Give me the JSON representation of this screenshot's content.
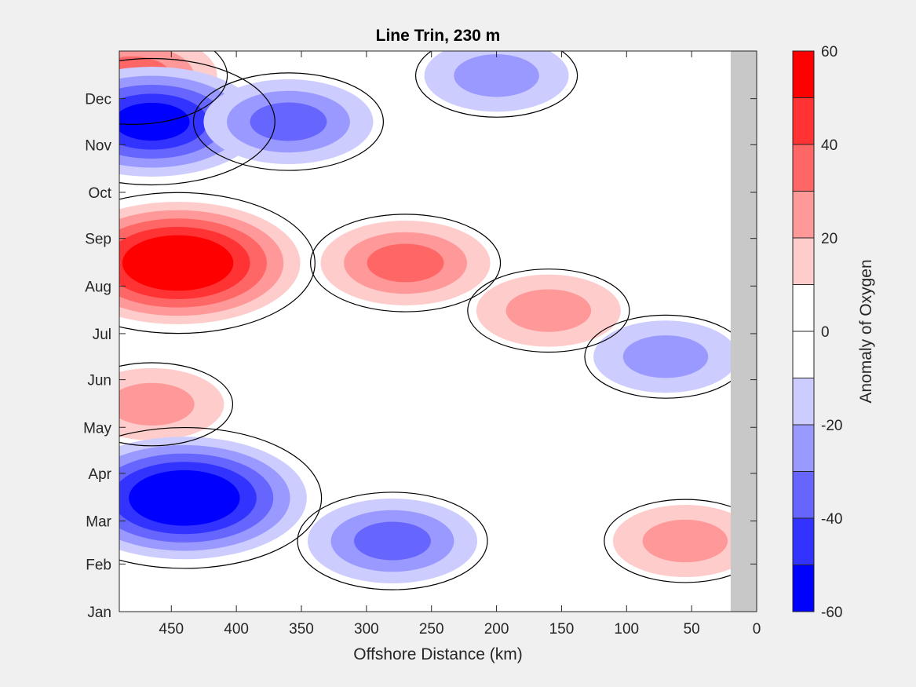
{
  "chart_data": {
    "type": "heatmap",
    "title": "Line Trin, 230 m",
    "xlabel": "Offshore Distance (km)",
    "ylabel": "",
    "xlim": [
      490,
      0
    ],
    "x_reversed": true,
    "x_ticks": [
      450,
      400,
      350,
      300,
      250,
      200,
      150,
      100,
      50,
      0
    ],
    "y_ticks": [
      "Jan",
      "Feb",
      "Mar",
      "Apr",
      "May",
      "Jun",
      "Jul",
      "Aug",
      "Sep",
      "Oct",
      "Nov",
      "Dec"
    ],
    "y_tick_days": [
      0,
      31,
      59,
      90,
      120,
      151,
      181,
      212,
      243,
      273,
      304,
      334
    ],
    "ylim": [
      0,
      365
    ],
    "no_data_region": {
      "x_range": [
        20,
        0
      ],
      "color": "#c8c8c8"
    },
    "colorbar": {
      "label": "Anomaly of Oxygen",
      "range": [
        -60,
        60
      ],
      "ticks": [
        60,
        40,
        20,
        0,
        -20,
        -40,
        -60
      ],
      "levels": [
        -60,
        -50,
        -40,
        -30,
        -20,
        -10,
        0,
        10,
        20,
        30,
        40,
        50,
        60
      ],
      "colors": [
        "#0000ff",
        "#3333ff",
        "#6666ff",
        "#9999ff",
        "#ccccff",
        "#ffffff",
        "#ffffff",
        "#ffcccc",
        "#ff9999",
        "#ff6666",
        "#ff3333",
        "#ff0000"
      ]
    },
    "anomaly_features": [
      {
        "sign": "positive",
        "peak": 60,
        "x_km": 445,
        "month": "Aug"
      },
      {
        "sign": "positive",
        "peak": 30,
        "x_km": 270,
        "month": "Aug"
      },
      {
        "sign": "positive",
        "peak": 20,
        "x_km": 160,
        "month": "Jul"
      },
      {
        "sign": "positive",
        "peak": 20,
        "x_km": 465,
        "month": "May"
      },
      {
        "sign": "positive",
        "peak": 20,
        "x_km": 55,
        "month": "Feb"
      },
      {
        "sign": "positive",
        "peak": 30,
        "x_km": 480,
        "month": "Dec"
      },
      {
        "sign": "negative",
        "peak": -60,
        "x_km": 440,
        "month": "Mar"
      },
      {
        "sign": "negative",
        "peak": -30,
        "x_km": 280,
        "month": "Feb"
      },
      {
        "sign": "negative",
        "peak": -50,
        "x_km": 465,
        "month": "Nov"
      },
      {
        "sign": "negative",
        "peak": -30,
        "x_km": 360,
        "month": "Nov"
      },
      {
        "sign": "negative",
        "peak": -20,
        "x_km": 200,
        "month": "Dec"
      },
      {
        "sign": "negative",
        "peak": -20,
        "x_km": 70,
        "month": "Jun"
      }
    ]
  }
}
